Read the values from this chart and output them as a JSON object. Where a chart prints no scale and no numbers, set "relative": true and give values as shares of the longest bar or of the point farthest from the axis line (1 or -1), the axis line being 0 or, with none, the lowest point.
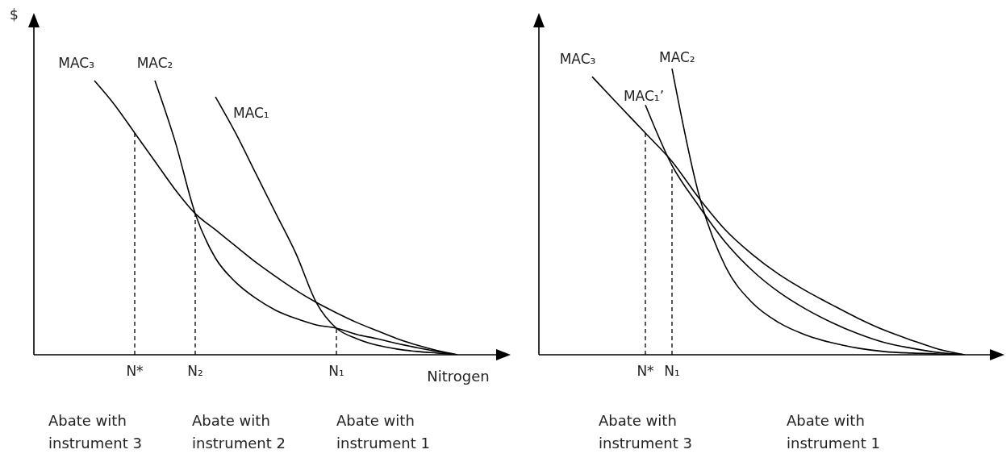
{
  "chart_data": [
    {
      "type": "line",
      "relative": true,
      "ylabel": "$",
      "xlabel": "Nitrogen",
      "grid": false,
      "legend": false,
      "marker": "none",
      "line_style": "solid",
      "categories": [
        null,
        null,
        null,
        null,
        null,
        "N*",
        null,
        null,
        "N₂",
        null,
        null,
        null,
        null,
        null,
        null,
        "N₁",
        null,
        null,
        null,
        null,
        null,
        null,
        null,
        null
      ],
      "series": [
        {
          "name": "MAC₃",
          "color": "#000000",
          "values": [
            null,
            null,
            null,
            1.0,
            0.912,
            0.809,
            0.706,
            0.603,
            0.515,
            0.456,
            0.397,
            0.338,
            0.285,
            0.235,
            0.191,
            0.153,
            0.118,
            0.088,
            0.059,
            0.035,
            0.015,
            0,
            null,
            null
          ]
        },
        {
          "name": "MAC₂",
          "color": "#000000",
          "values": [
            null,
            null,
            null,
            null,
            null,
            null,
            1.0,
            0.779,
            0.515,
            0.353,
            0.265,
            0.206,
            0.162,
            0.132,
            0.109,
            0.097,
            0.074,
            0.059,
            0.041,
            0.026,
            0.012,
            0,
            null,
            null
          ]
        },
        {
          "name": "MAC₁",
          "color": "#000000",
          "values": [
            null,
            null,
            null,
            null,
            null,
            null,
            null,
            null,
            null,
            0.941,
            0.809,
            0.662,
            0.515,
            0.368,
            0.191,
            0.097,
            0.059,
            0.035,
            0.021,
            0.012,
            0.006,
            0,
            null,
            null
          ]
        }
      ],
      "ref_lines": [
        {
          "axis": "x",
          "value": "N*",
          "color": "#000000",
          "line_style": "dashed"
        },
        {
          "axis": "x",
          "value": "N₂",
          "color": "#000000",
          "line_style": "dashed"
        },
        {
          "axis": "x",
          "value": "N₁",
          "color": "#000000",
          "line_style": "dashed"
        }
      ],
      "annotations": [
        "Abate with instrument 3",
        "Abate with instrument 2",
        "Abate with instrument 1"
      ]
    },
    {
      "type": "line",
      "relative": true,
      "grid": false,
      "legend": false,
      "marker": "none",
      "line_style": "solid",
      "categories": [
        null,
        null,
        null,
        null,
        "N*",
        "N₁",
        null,
        null,
        null,
        null,
        null,
        null,
        null,
        null,
        null,
        null,
        null,
        null
      ],
      "series": [
        {
          "name": "MAC₃",
          "color": "#000000",
          "values": [
            null,
            null,
            0.972,
            0.873,
            0.775,
            0.676,
            0.549,
            0.437,
            0.352,
            0.282,
            0.225,
            0.175,
            0.127,
            0.085,
            0.051,
            0.02,
            0,
            null
          ]
        },
        {
          "name": "MAC₂",
          "color": "#000000",
          "values": [
            null,
            null,
            null,
            null,
            null,
            1.0,
            0.563,
            0.31,
            0.183,
            0.113,
            0.07,
            0.042,
            0.023,
            0.011,
            0.006,
            0.003,
            0,
            null
          ]
        },
        {
          "name": "MAC₁’",
          "color": "#000000",
          "values": [
            null,
            null,
            null,
            null,
            0.873,
            0.662,
            0.521,
            0.394,
            0.296,
            0.22,
            0.161,
            0.113,
            0.073,
            0.042,
            0.023,
            0.008,
            0,
            null
          ]
        }
      ],
      "ref_lines": [
        {
          "axis": "x",
          "value": "N*",
          "color": "#000000",
          "line_style": "dashed"
        },
        {
          "axis": "x",
          "value": "N₁",
          "color": "#000000",
          "line_style": "dashed"
        }
      ],
      "annotations": [
        "Abate with instrument 3",
        "Abate with instrument 1"
      ]
    }
  ]
}
